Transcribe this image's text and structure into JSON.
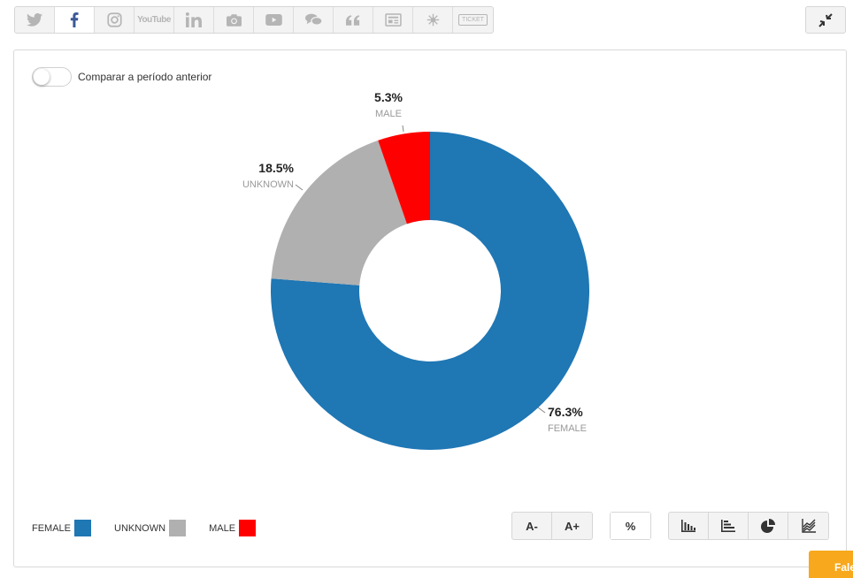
{
  "social_tabs": [
    {
      "name": "twitter",
      "icon": "twitter-icon"
    },
    {
      "name": "facebook",
      "icon": "facebook-icon",
      "active": true
    },
    {
      "name": "instagram",
      "icon": "instagram-icon"
    },
    {
      "name": "youtube",
      "icon": "youtube-icon",
      "text": "YouTube"
    },
    {
      "name": "linkedin",
      "icon": "linkedin-icon"
    },
    {
      "name": "camera",
      "icon": "camera-icon"
    },
    {
      "name": "video",
      "icon": "video-play-icon"
    },
    {
      "name": "chat",
      "icon": "chat-bubbles-icon"
    },
    {
      "name": "quote",
      "icon": "quote-icon"
    },
    {
      "name": "news",
      "icon": "newspaper-icon"
    },
    {
      "name": "burst",
      "icon": "burst-icon"
    },
    {
      "name": "ticket",
      "icon": "ticket-icon",
      "text": "TICKET"
    }
  ],
  "toolbar": {
    "collapse_icon": "collapse-arrows-icon"
  },
  "compare": {
    "label": "Comparar a período anterior",
    "enabled": false
  },
  "chart_data": {
    "type": "pie",
    "donut": true,
    "slices": [
      {
        "label": "FEMALE",
        "value": 76.3,
        "display": "76.3%",
        "color": "#1f77b4"
      },
      {
        "label": "UNKNOWN",
        "value": 18.5,
        "display": "18.5%",
        "color": "#b0b0b0"
      },
      {
        "label": "MALE",
        "value": 5.3,
        "display": "5.3%",
        "color": "#ff0000"
      }
    ],
    "legend": [
      {
        "label": "FEMALE",
        "color": "#1f77b4"
      },
      {
        "label": "UNKNOWN",
        "color": "#b0b0b0"
      },
      {
        "label": "MALE",
        "color": "#ff0000"
      }
    ],
    "legend_position": "bottom-left"
  },
  "controls": {
    "font_decrease": "A-",
    "font_increase": "A+",
    "percent": "%",
    "chart_types": [
      "bar-chart-icon",
      "horizontal-bar-icon",
      "pie-chart-icon",
      "line-chart-icon"
    ]
  },
  "chat": {
    "label": "Fale"
  },
  "colors": {
    "accent": "#f7a81c",
    "facebook": "#3b5998"
  }
}
